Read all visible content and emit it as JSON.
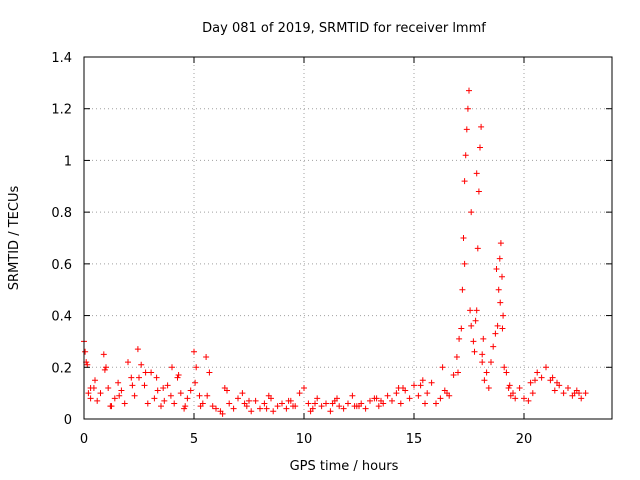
{
  "chart_data": {
    "type": "scatter",
    "title": "Day 081 of 2019, SRMTID for receiver lmmf",
    "xlabel": "GPS time / hours",
    "ylabel": "SRMTID / TECUs",
    "xlim": [
      0,
      24
    ],
    "ylim": [
      0,
      1.4
    ],
    "x_ticks": [
      0,
      5,
      10,
      15,
      20
    ],
    "y_ticks": [
      0,
      0.2,
      0.4,
      0.6,
      0.8,
      1,
      1.2,
      1.4
    ],
    "x_tick_labels": [
      "0",
      "5",
      "10",
      "15",
      "20"
    ],
    "y_tick_labels": [
      "0",
      "0.2",
      "0.4",
      "0.6",
      "0.8",
      "1",
      "1.2",
      "1.4"
    ],
    "grid": true,
    "marker": "+",
    "marker_color": "#ff0000",
    "series": [
      {
        "name": "SRMTID",
        "x": [
          0.0,
          0.05,
          0.1,
          0.2,
          0.3,
          0.45,
          0.6,
          0.75,
          0.9,
          1.0,
          1.1,
          1.25,
          1.4,
          1.55,
          1.7,
          1.85,
          2.0,
          2.15,
          2.3,
          2.45,
          2.6,
          2.75,
          2.9,
          3.05,
          3.2,
          3.35,
          3.5,
          3.65,
          3.8,
          3.95,
          4.1,
          4.25,
          4.4,
          4.55,
          4.7,
          4.85,
          5.0,
          5.1,
          5.25,
          5.4,
          5.55,
          5.7,
          5.85,
          6.0,
          6.2,
          6.4,
          6.6,
          6.8,
          7.0,
          7.2,
          7.4,
          7.6,
          7.8,
          8.0,
          8.2,
          8.4,
          8.6,
          8.8,
          9.0,
          9.2,
          9.4,
          9.6,
          9.8,
          10.0,
          10.2,
          10.4,
          10.6,
          10.8,
          11.0,
          11.2,
          11.4,
          11.6,
          11.8,
          12.0,
          12.2,
          12.4,
          12.6,
          12.8,
          13.0,
          13.2,
          13.4,
          13.6,
          13.8,
          14.0,
          14.2,
          14.4,
          14.6,
          14.8,
          15.0,
          15.2,
          15.4,
          15.6,
          15.8,
          16.0,
          16.2,
          16.4,
          16.6,
          16.8,
          16.95,
          17.05,
          17.15,
          17.2,
          17.25,
          17.3,
          17.35,
          17.4,
          17.45,
          17.5,
          17.55,
          17.6,
          17.7,
          17.75,
          17.8,
          17.85,
          17.9,
          17.95,
          18.0,
          18.05,
          18.1,
          18.15,
          18.2,
          18.3,
          18.4,
          18.5,
          18.6,
          18.7,
          18.8,
          18.85,
          18.9,
          18.95,
          19.0,
          19.05,
          19.1,
          19.2,
          19.3,
          19.4,
          19.5,
          19.6,
          19.8,
          20.0,
          20.2,
          20.4,
          20.6,
          20.8,
          21.0,
          21.2,
          21.4,
          21.6,
          21.8,
          22.0,
          22.2,
          22.4,
          22.6,
          22.8,
          0.15,
          0.5,
          0.95,
          1.6,
          2.2,
          2.8,
          3.3,
          4.0,
          4.6,
          5.05,
          5.6,
          6.5,
          7.5,
          8.5,
          9.5,
          10.5,
          11.5,
          12.5,
          13.5,
          14.5,
          15.5,
          16.3,
          17.0,
          17.3,
          17.6,
          17.85,
          18.1,
          18.75,
          18.92,
          19.02,
          19.35,
          20.5,
          21.5,
          22.5,
          0.3,
          1.2,
          2.5,
          3.6,
          4.3,
          5.3,
          6.3,
          7.3,
          8.3,
          9.3,
          10.3,
          11.3,
          12.3,
          13.3,
          14.3,
          15.3,
          16.5,
          20.3,
          21.3,
          22.3
        ],
        "y": [
          0.3,
          0.26,
          0.22,
          0.1,
          0.08,
          0.12,
          0.07,
          0.1,
          0.25,
          0.2,
          0.12,
          0.05,
          0.08,
          0.14,
          0.11,
          0.06,
          0.22,
          0.16,
          0.09,
          0.27,
          0.21,
          0.13,
          0.06,
          0.18,
          0.08,
          0.11,
          0.05,
          0.07,
          0.13,
          0.09,
          0.06,
          0.16,
          0.1,
          0.04,
          0.08,
          0.11,
          0.26,
          0.2,
          0.09,
          0.06,
          0.24,
          0.18,
          0.05,
          0.04,
          0.03,
          0.12,
          0.06,
          0.04,
          0.08,
          0.1,
          0.05,
          0.03,
          0.07,
          0.04,
          0.06,
          0.09,
          0.03,
          0.05,
          0.06,
          0.04,
          0.07,
          0.05,
          0.1,
          0.12,
          0.06,
          0.04,
          0.08,
          0.05,
          0.06,
          0.03,
          0.07,
          0.05,
          0.04,
          0.06,
          0.09,
          0.05,
          0.06,
          0.04,
          0.07,
          0.08,
          0.05,
          0.06,
          0.09,
          0.07,
          0.1,
          0.06,
          0.11,
          0.08,
          0.13,
          0.09,
          0.15,
          0.1,
          0.14,
          0.06,
          0.08,
          0.11,
          0.09,
          0.17,
          0.24,
          0.31,
          0.35,
          0.5,
          0.7,
          0.92,
          1.02,
          1.12,
          1.2,
          1.27,
          0.42,
          0.36,
          0.3,
          0.26,
          0.38,
          0.42,
          0.66,
          0.88,
          1.05,
          1.13,
          0.22,
          0.31,
          0.15,
          0.18,
          0.12,
          0.22,
          0.28,
          0.33,
          0.36,
          0.5,
          0.62,
          0.68,
          0.55,
          0.4,
          0.2,
          0.18,
          0.12,
          0.09,
          0.1,
          0.08,
          0.12,
          0.08,
          0.07,
          0.1,
          0.18,
          0.16,
          0.2,
          0.15,
          0.11,
          0.13,
          0.1,
          0.12,
          0.09,
          0.11,
          0.08,
          0.1,
          0.21,
          0.15,
          0.19,
          0.09,
          0.13,
          0.18,
          0.16,
          0.2,
          0.05,
          0.14,
          0.09,
          0.11,
          0.07,
          0.08,
          0.05,
          0.06,
          0.08,
          0.05,
          0.07,
          0.12,
          0.06,
          0.2,
          0.18,
          0.6,
          0.8,
          0.95,
          0.25,
          0.58,
          0.45,
          0.35,
          0.13,
          0.15,
          0.14,
          0.1,
          0.12,
          0.05,
          0.16,
          0.12,
          0.17,
          0.05,
          0.02,
          0.06,
          0.04,
          0.07,
          0.03,
          0.06,
          0.05,
          0.08,
          0.12,
          0.13,
          0.1,
          0.14,
          0.16,
          0.1
        ]
      }
    ]
  }
}
